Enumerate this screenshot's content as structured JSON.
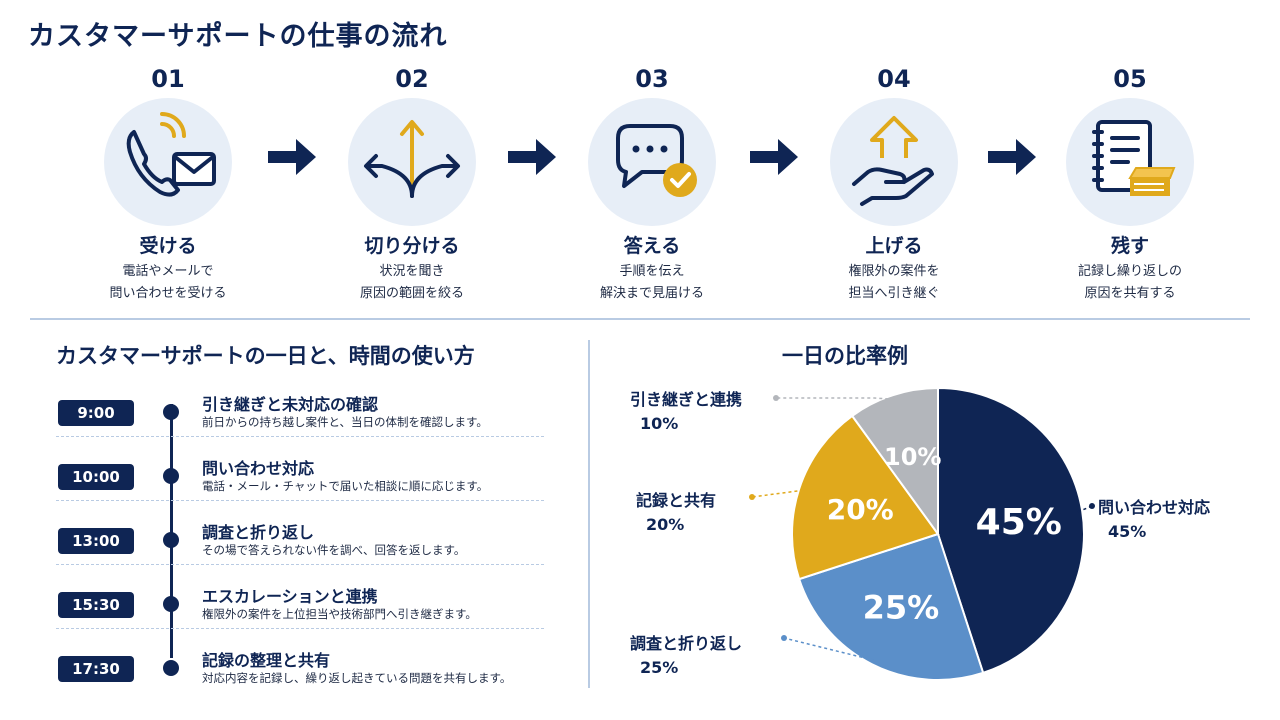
{
  "title": "カスタマーサポートの仕事の流れ",
  "steps": [
    {
      "num": "01",
      "label": "受ける",
      "desc1": "電話やメールで",
      "desc2": "問い合わせを受ける",
      "icon": "phone-mail-icon"
    },
    {
      "num": "02",
      "label": "切り分ける",
      "desc1": "状況を聞き",
      "desc2": "原因の範囲を絞る",
      "icon": "split-arrows-icon"
    },
    {
      "num": "03",
      "label": "答える",
      "desc1": "手順を伝え",
      "desc2": "解決まで見届ける",
      "icon": "chat-check-icon"
    },
    {
      "num": "04",
      "label": "上げる",
      "desc1": "権限外の案件を",
      "desc2": "担当へ引き継ぐ",
      "icon": "hand-up-arrow-icon"
    },
    {
      "num": "05",
      "label": "残す",
      "desc1": "記録し繰り返しの",
      "desc2": "原因を共有する",
      "icon": "notebook-docs-icon"
    }
  ],
  "schedule": {
    "title": "カスタマーサポートの一日と、時間の使い方",
    "rows": [
      {
        "time": "9:00",
        "title": "引き継ぎと未対応の確認",
        "desc": "前日からの持ち越し案件と、当日の体制を確認します。"
      },
      {
        "time": "10:00",
        "title": "問い合わせ対応",
        "desc": "電話・メール・チャットで届いた相談に順に応じます。"
      },
      {
        "time": "13:00",
        "title": "調査と折り返し",
        "desc": "その場で答えられない件を調べ、回答を返します。"
      },
      {
        "time": "15:30",
        "title": "エスカレーションと連携",
        "desc": "権限外の案件を上位担当や技術部門へ引き継ぎます。"
      },
      {
        "time": "17:30",
        "title": "記録の整理と共有",
        "desc": "対応内容を記録し、繰り返し起きている問題を共有します。"
      }
    ]
  },
  "chart_data": {
    "type": "pie",
    "title": "一日の比率例",
    "slices": [
      {
        "name": "問い合わせ対応",
        "value": 45,
        "label": "45%",
        "color": "#0f2554"
      },
      {
        "name": "調査と折り返し",
        "value": 25,
        "label": "25%",
        "color": "#5b8fc9"
      },
      {
        "name": "記録と共有",
        "value": 20,
        "label": "20%",
        "color": "#e0a91c"
      },
      {
        "name": "引き継ぎと連携",
        "value": 10,
        "label": "10%",
        "color": "#b3b6bb"
      }
    ]
  },
  "colors": {
    "navy": "#0f2554",
    "gold": "#e0a91c",
    "light_circle": "#e7eef7"
  }
}
